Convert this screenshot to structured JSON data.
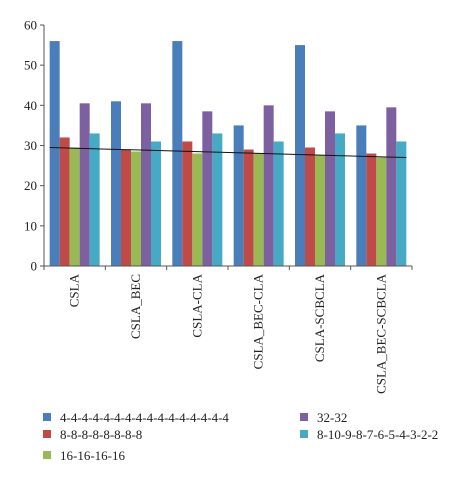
{
  "chart_data": {
    "type": "bar",
    "categories": [
      "CSLA",
      "CSLA_BEC",
      "CSLA-CLA",
      "CSLA_BEC-CLA",
      "CSLA-SCBCLA",
      "CSLA_BEC-SCBCLA"
    ],
    "series": [
      {
        "name": "4-4-4-4-4-4-4-4-4-4-4-4-4-4-4-4",
        "color": "#4a7ebb",
        "values": [
          56,
          41,
          56,
          35,
          55,
          35
        ]
      },
      {
        "name": "8-8-8-8-8-8-8-8",
        "color": "#be4b48",
        "values": [
          32,
          29,
          31,
          29,
          29.5,
          28
        ]
      },
      {
        "name": "16-16-16-16",
        "color": "#98b954",
        "values": [
          29.5,
          28.5,
          28,
          28,
          27.5,
          27
        ]
      },
      {
        "name": "32-32",
        "color": "#7d60a0",
        "values": [
          40.5,
          40.5,
          38.5,
          40,
          38.5,
          39.5
        ]
      },
      {
        "name": "8-10-9-8-7-6-5-4-3-2-2",
        "color": "#46aac5",
        "values": [
          33,
          31,
          33,
          31,
          33,
          31
        ]
      }
    ],
    "trendline": {
      "from": 29.5,
      "to": 27
    },
    "ylim": [
      0,
      60
    ],
    "yticks": [
      0,
      10,
      20,
      30,
      40,
      50,
      60
    ],
    "title": "",
    "xlabel": "",
    "ylabel": "",
    "grid": false,
    "legend_position": "bottom"
  }
}
